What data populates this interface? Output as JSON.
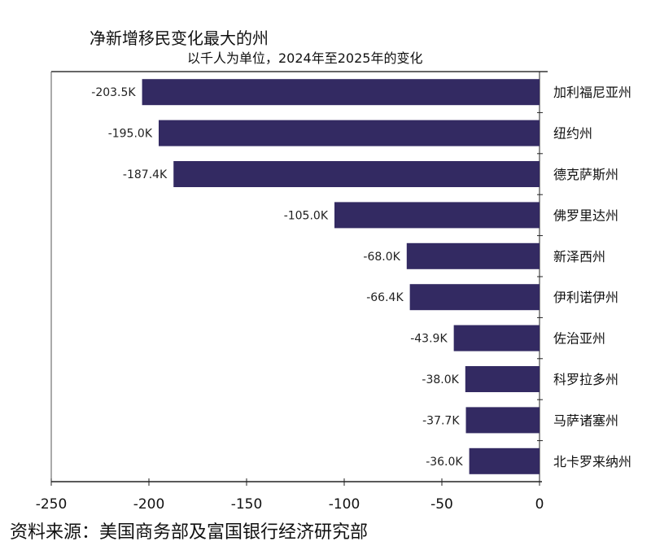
{
  "chart_data": {
    "type": "bar",
    "orientation": "horizontal",
    "title": "净新增移民变化最大的州",
    "subtitle": "以千人为单位，2024年至2025年的变化",
    "categories": [
      "加利福尼亚州",
      "纽约州",
      "德克萨斯州",
      "佛罗里达州",
      "新泽西州",
      "伊利诺伊州",
      "佐治亚州",
      "科罗拉多州",
      "马萨诸塞州",
      "北卡罗来纳州"
    ],
    "values": [
      -203.5,
      -195.0,
      -187.4,
      -105.0,
      -68.0,
      -66.4,
      -43.9,
      -38.0,
      -37.7,
      -36.0
    ],
    "data_labels": [
      "-203.5K",
      "-195.0K",
      "-187.4K",
      "-105.0K",
      "-68.0K",
      "-66.4K",
      "-43.9K",
      "-38.0K",
      "-37.7K",
      "-36.0K"
    ],
    "xlim": [
      -250,
      0
    ],
    "xticks": [
      -250,
      -200,
      -150,
      -100,
      -50,
      0
    ],
    "xtick_labels": [
      "-250",
      "-200",
      "-150",
      "-100",
      "-50",
      "0"
    ],
    "category_axis_position": "right",
    "grid": false,
    "bar_color": "#332a62"
  },
  "source": "资料来源：美国商务部及富国银行经济研究部"
}
